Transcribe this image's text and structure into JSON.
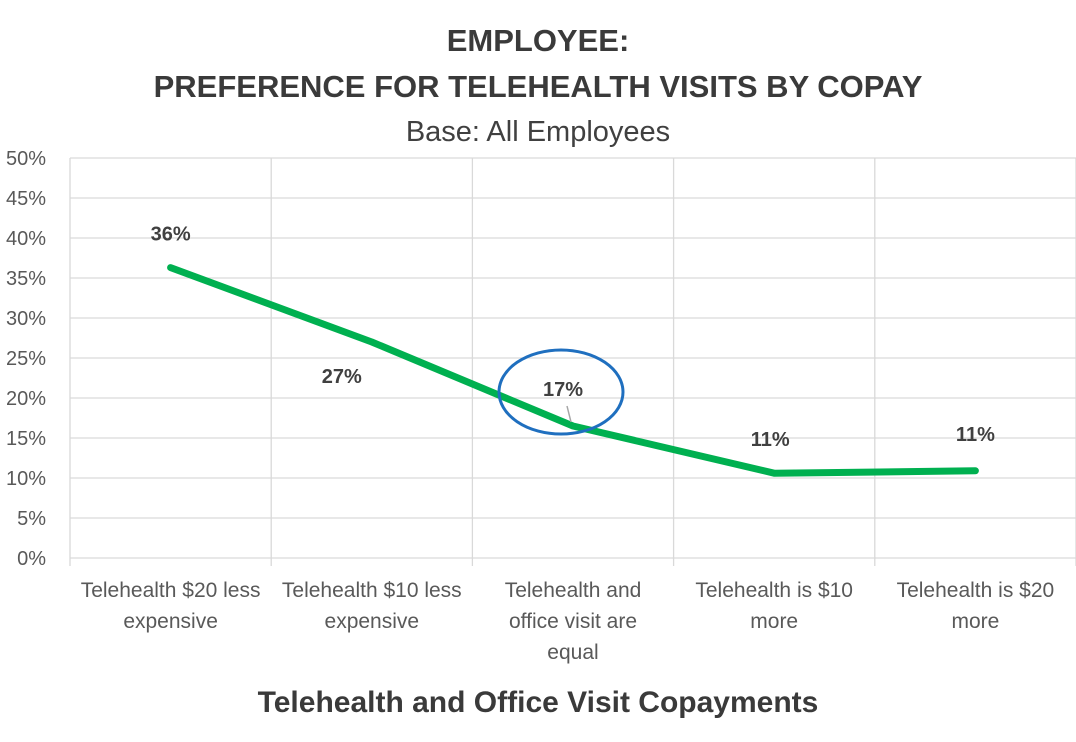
{
  "title_line1": "EMPLOYEE:",
  "title_line2": "PREFERENCE FOR TELEHEALTH VISITS BY COPAY",
  "subtitle": "Base: All Employees",
  "chart_data": {
    "type": "line",
    "title": "EMPLOYEE: PREFERENCE FOR TELEHEALTH VISITS BY COPAY",
    "subtitle": "Base: All Employees",
    "xlabel": "Telehealth and Office Visit Copayments",
    "ylabel": "",
    "ylim": [
      0,
      0.5
    ],
    "yticks": [
      {
        "value": 0.0,
        "label": "0%"
      },
      {
        "value": 0.05,
        "label": "5%"
      },
      {
        "value": 0.1,
        "label": "10%"
      },
      {
        "value": 0.15,
        "label": "15%"
      },
      {
        "value": 0.2,
        "label": "20%"
      },
      {
        "value": 0.25,
        "label": "25%"
      },
      {
        "value": 0.3,
        "label": "30%"
      },
      {
        "value": 0.35,
        "label": "35%"
      },
      {
        "value": 0.4,
        "label": "40%"
      },
      {
        "value": 0.45,
        "label": "45%"
      },
      {
        "value": 0.5,
        "label": "50%"
      }
    ],
    "categories": [
      [
        "Telehealth $20 less",
        "expensive"
      ],
      [
        "Telehealth $10 less",
        "expensive"
      ],
      [
        "Telehealth and",
        "office visit are",
        "equal"
      ],
      [
        "Telehealth is $10",
        "more"
      ],
      [
        "Telehealth is $20",
        "more"
      ]
    ],
    "values": [
      0.363,
      0.27,
      0.165,
      0.106,
      0.109
    ],
    "data_labels": [
      "36%",
      "27%",
      "17%",
      "11%",
      "11%"
    ],
    "highlight_index": 2,
    "grid": true,
    "line_color": "#00b050",
    "highlight_color": "#1f6fbf"
  }
}
